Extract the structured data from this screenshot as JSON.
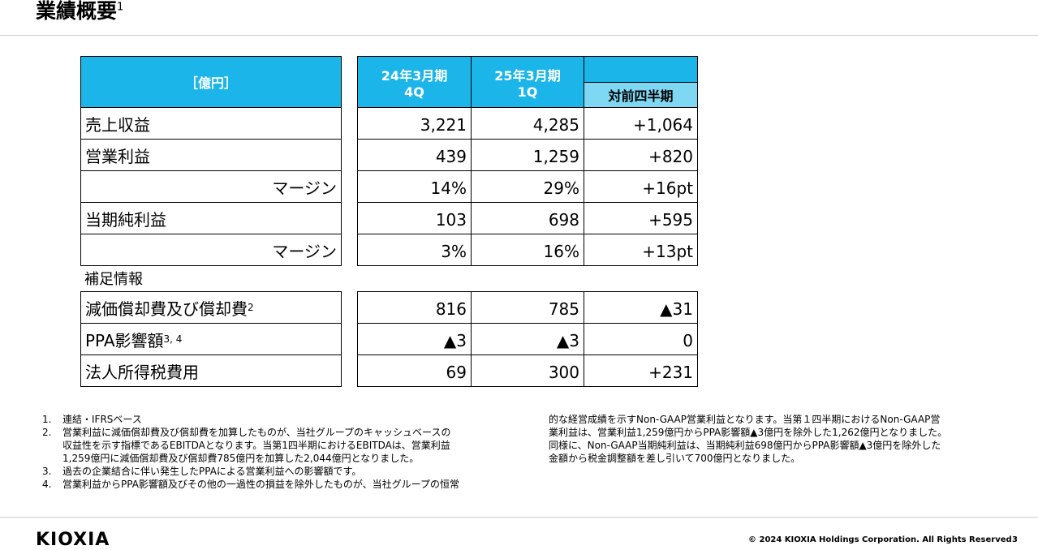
{
  "header": {
    "title": "業績概要",
    "title_note": "1"
  },
  "table": {
    "unit": "［億円］",
    "columns": [
      {
        "line1": "24年3月期",
        "line2": "4Q"
      },
      {
        "line1": "25年3月期",
        "line2": "1Q"
      }
    ],
    "change_header": "対前四半期",
    "rows": [
      {
        "label": "売上収益",
        "values": [
          "3,221",
          "4,285",
          "+1,064"
        ]
      },
      {
        "label": "営業利益",
        "values": [
          "439",
          "1,259",
          "+820"
        ]
      },
      {
        "label": "マージン",
        "values": [
          "14%",
          "29%",
          "+16pt"
        ]
      },
      {
        "label": "当期純利益",
        "values": [
          "103",
          "698",
          "+595"
        ]
      },
      {
        "label": "マージン",
        "values": [
          "3%",
          "16%",
          "+13pt"
        ]
      }
    ]
  },
  "supplement": {
    "title": "補足情報",
    "rows": [
      {
        "label": "減価償却費及び償却費",
        "note": "2",
        "values": [
          "816",
          "785",
          "▲31"
        ]
      },
      {
        "label": "PPA影響額",
        "note": "3, 4",
        "values": [
          "▲3",
          "▲3",
          "0"
        ]
      },
      {
        "label": "法人所得税費用",
        "values": [
          "69",
          "300",
          "+231"
        ]
      }
    ]
  },
  "footnotes": {
    "left": [
      {
        "num": "1.",
        "lines": [
          "連結・IFRSベース"
        ]
      },
      {
        "num": "2.",
        "lines": [
          "営業利益に減価償却費及び償却費を加算したものが、当社グループのキャッシュベースの",
          "収益性を示す指標であるEBITDAとなります。当第1四半期におけるEBITDAは、営業利益",
          "1,259億円に減価償却費及び償却費785億円を加算した2,044億円となりました。"
        ]
      },
      {
        "num": "3.",
        "lines": [
          "過去の企業結合に伴い発生したPPAによる営業利益への影響額です。"
        ]
      },
      {
        "num": "4.",
        "lines": [
          "営業利益からPPA影響額及びその他の一過性の損益を除外したものが、当社グループの恒常"
        ]
      }
    ],
    "right": [
      "的な経営成績を示すNon-GAAP営業利益となります。当第１四半期におけるNon-GAAP営",
      "業利益は、営業利益1,259億円からPPA影響額▲3億円を除外した1,262億円となりました。",
      "同様に、Non-GAAP当期純利益は、当期純利益698億円からPPA影響額▲3億円を除外した",
      "金額から税金調整額を差し引いて700億円となりました。"
    ]
  },
  "footer": {
    "logo": "KIOXIA",
    "copyright": "© 2024 KIOXIA Holdings Corporation. All Rights Reserved",
    "page": "3"
  }
}
